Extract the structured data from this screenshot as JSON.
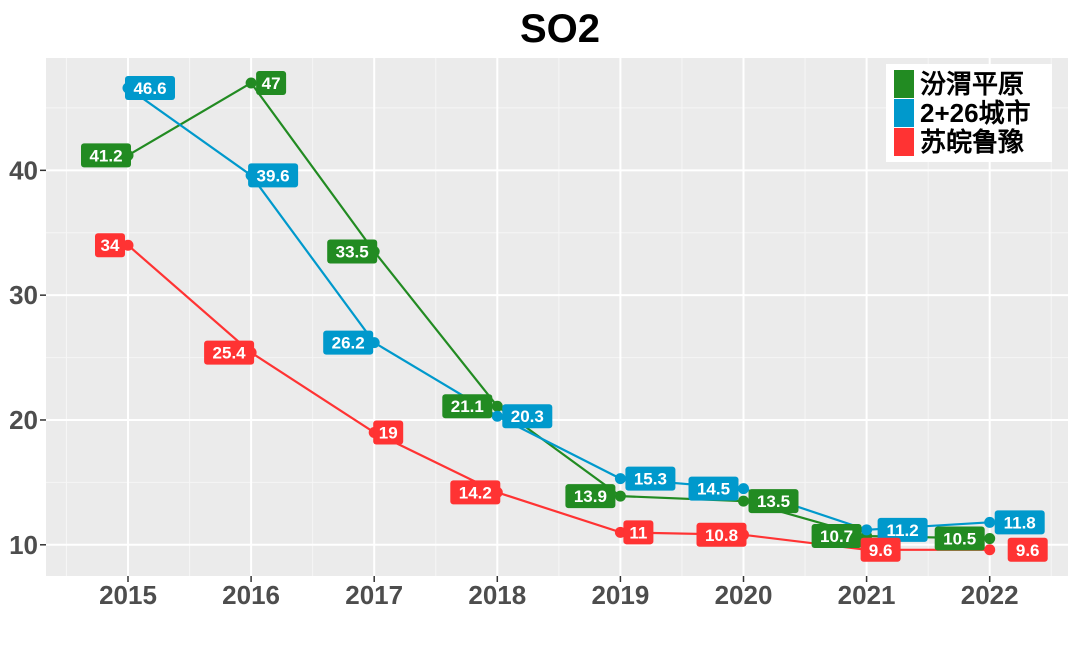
{
  "chart_data": {
    "type": "line",
    "title": "SO2",
    "xlabel": "",
    "ylabel": "",
    "categories": [
      "2015",
      "2016",
      "2017",
      "2018",
      "2019",
      "2020",
      "2021",
      "2022"
    ],
    "yticks": [
      10,
      20,
      30,
      40
    ],
    "ylim": [
      7.5,
      49
    ],
    "grid": true,
    "legend_position": "top-right",
    "series": [
      {
        "name": "汾渭平原",
        "color": "#228B22",
        "values": [
          41.2,
          47,
          33.5,
          21.1,
          13.9,
          13.5,
          10.7,
          10.5
        ],
        "labels": [
          "41.2",
          "47",
          "33.5",
          "21.1",
          "13.9",
          "13.5",
          "10.7",
          "10.5"
        ]
      },
      {
        "name": "2+26城市",
        "color": "#0099CC",
        "values": [
          46.6,
          39.6,
          26.2,
          20.3,
          15.3,
          14.5,
          11.2,
          11.8
        ],
        "labels": [
          "46.6",
          "39.6",
          "26.2",
          "20.3",
          "15.3",
          "14.5",
          "11.2",
          "11.8"
        ]
      },
      {
        "name": "苏皖鲁豫",
        "color": "#FF3333",
        "values": [
          34,
          25.4,
          19,
          14.2,
          11,
          10.8,
          9.6,
          9.6
        ],
        "labels": [
          "34",
          "25.4",
          "19",
          "14.2",
          "11",
          "10.8",
          "9.6",
          "9.6"
        ]
      }
    ]
  }
}
